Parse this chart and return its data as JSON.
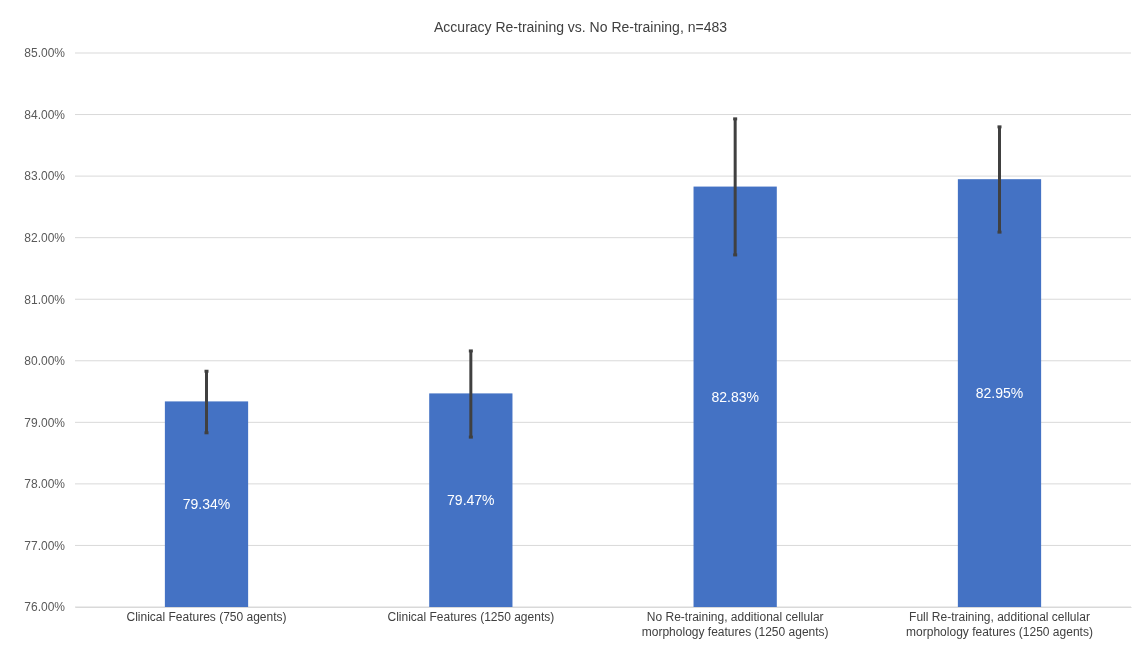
{
  "chart_data": {
    "type": "bar",
    "title": "Accuracy Re-training vs. No Re-training, n=483",
    "categories": [
      "Clinical Features (750 agents)",
      "Clinical Features (1250 agents)",
      "No Re-training, additional cellular morphology features (1250 agents)",
      "Full Re-training, additional cellular morphology features (1250 agents)"
    ],
    "values": [
      79.34,
      79.47,
      82.83,
      82.95
    ],
    "value_labels": [
      "79.34%",
      "79.47%",
      "82.83%",
      "82.95%"
    ],
    "errors": [
      [
        78.83,
        79.83
      ],
      [
        78.76,
        80.16
      ],
      [
        81.72,
        83.93
      ],
      [
        82.09,
        83.8
      ]
    ],
    "color": "#4472c4",
    "ylim": [
      76,
      85
    ],
    "yticks": [
      {
        "value": 76,
        "label": "76.00%"
      },
      {
        "value": 77,
        "label": "77.00%"
      },
      {
        "value": 78,
        "label": "78.00%"
      },
      {
        "value": 79,
        "label": "79.00%"
      },
      {
        "value": 80,
        "label": "80.00%"
      },
      {
        "value": 81,
        "label": "81.00%"
      },
      {
        "value": 82,
        "label": "82.00%"
      },
      {
        "value": 83,
        "label": "83.00%"
      },
      {
        "value": 84,
        "label": "84.00%"
      },
      {
        "value": 85,
        "label": "85.00%"
      }
    ],
    "grid": "y"
  }
}
